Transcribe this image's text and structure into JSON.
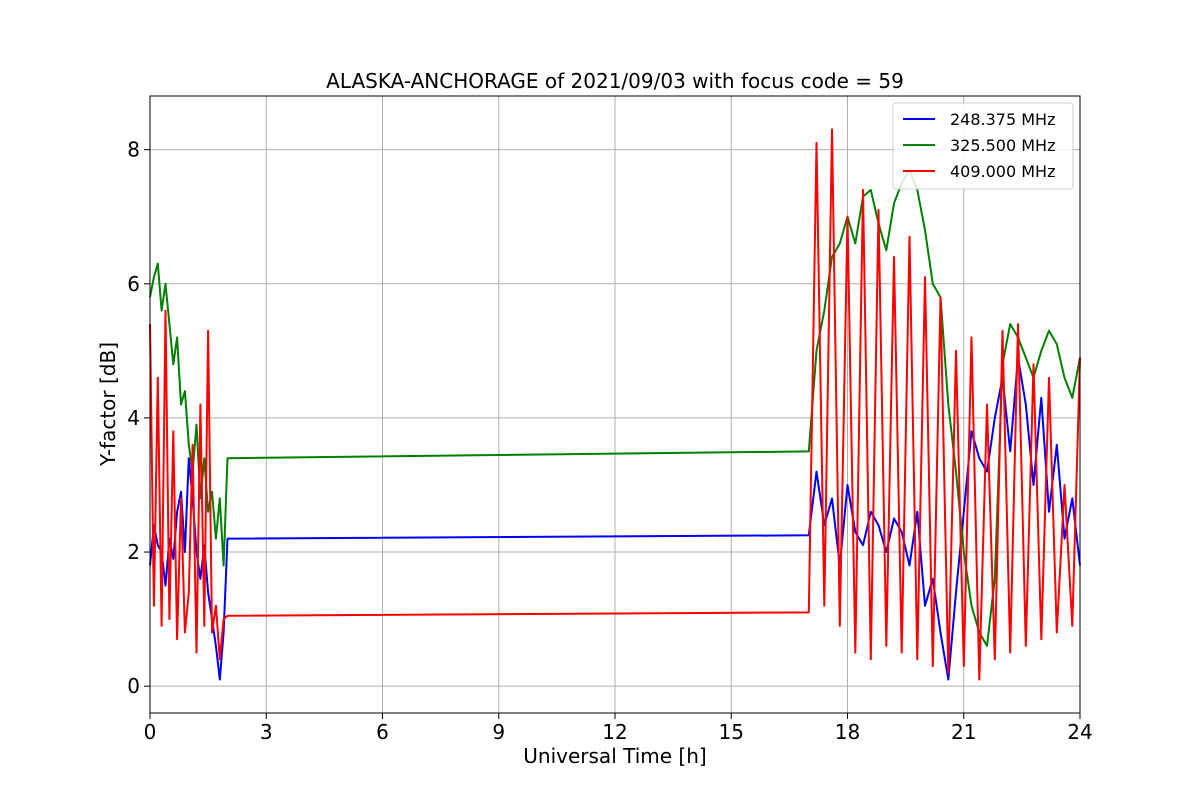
{
  "chart_data": {
    "type": "line",
    "title": "ALASKA-ANCHORAGE of 2021/09/03 with focus code = 59",
    "xlabel": "Universal Time [h]",
    "ylabel": "Y-factor [dB]",
    "xlim": [
      0,
      24
    ],
    "ylim": [
      -0.4,
      8.8
    ],
    "xticks": [
      0,
      3,
      6,
      9,
      12,
      15,
      18,
      21,
      24
    ],
    "yticks": [
      0,
      2,
      4,
      6,
      8
    ],
    "grid": true,
    "legend_position": "top-right",
    "series": [
      {
        "name": "248.375 MHz",
        "color": "#0000ff",
        "x": [
          0,
          0.1,
          0.2,
          0.3,
          0.4,
          0.5,
          0.6,
          0.7,
          0.8,
          0.9,
          1.0,
          1.1,
          1.2,
          1.3,
          1.4,
          1.5,
          1.6,
          1.7,
          1.8,
          1.9,
          2.0,
          17.0,
          17.2,
          17.4,
          17.6,
          17.8,
          18.0,
          18.2,
          18.4,
          18.6,
          18.8,
          19.0,
          19.2,
          19.4,
          19.6,
          19.8,
          20.0,
          20.2,
          20.4,
          20.6,
          20.8,
          21.0,
          21.2,
          21.4,
          21.6,
          21.8,
          22.0,
          22.2,
          22.4,
          22.6,
          22.8,
          23.0,
          23.2,
          23.4,
          23.6,
          23.8,
          24.0
        ],
        "y": [
          1.8,
          2.4,
          2.1,
          2.0,
          1.5,
          2.2,
          1.9,
          2.6,
          2.9,
          2.0,
          3.4,
          2.8,
          2.0,
          1.6,
          2.1,
          1.4,
          1.0,
          0.6,
          0.1,
          0.8,
          2.2,
          2.25,
          3.2,
          2.4,
          2.8,
          1.8,
          3.0,
          2.3,
          2.1,
          2.6,
          2.4,
          2.0,
          2.5,
          2.3,
          1.8,
          2.6,
          1.2,
          1.6,
          0.8,
          0.1,
          1.4,
          2.6,
          3.8,
          3.4,
          3.2,
          4.0,
          4.6,
          3.5,
          4.9,
          4.2,
          3.0,
          4.3,
          2.6,
          3.6,
          2.2,
          2.8,
          1.8
        ]
      },
      {
        "name": "325.500 MHz",
        "color": "#008000",
        "x": [
          0,
          0.1,
          0.2,
          0.3,
          0.4,
          0.5,
          0.6,
          0.7,
          0.8,
          0.9,
          1.0,
          1.1,
          1.2,
          1.3,
          1.4,
          1.5,
          1.6,
          1.7,
          1.8,
          1.9,
          2.0,
          17.0,
          17.2,
          17.4,
          17.6,
          17.8,
          18.0,
          18.2,
          18.4,
          18.6,
          18.8,
          19.0,
          19.2,
          19.4,
          19.6,
          19.8,
          20.0,
          20.2,
          20.4,
          20.6,
          20.8,
          21.0,
          21.2,
          21.4,
          21.6,
          21.8,
          22.0,
          22.2,
          22.4,
          22.6,
          22.8,
          23.0,
          23.2,
          23.4,
          23.6,
          23.8,
          24.0
        ],
        "y": [
          5.8,
          6.1,
          6.3,
          5.6,
          6.0,
          5.4,
          4.8,
          5.2,
          4.2,
          4.4,
          3.6,
          3.2,
          3.9,
          2.8,
          3.4,
          2.6,
          2.9,
          2.2,
          2.8,
          1.8,
          3.4,
          3.5,
          5.0,
          5.6,
          6.4,
          6.6,
          7.0,
          6.6,
          7.3,
          7.4,
          6.9,
          6.5,
          7.2,
          7.5,
          7.7,
          7.4,
          6.8,
          6.0,
          5.8,
          4.2,
          3.2,
          2.0,
          1.2,
          0.8,
          0.6,
          1.6,
          4.8,
          5.4,
          5.2,
          4.9,
          4.6,
          5.0,
          5.3,
          5.1,
          4.6,
          4.3,
          4.9
        ]
      },
      {
        "name": "409.000 MHz",
        "color": "#ff0000",
        "x": [
          0,
          0.1,
          0.2,
          0.3,
          0.4,
          0.5,
          0.6,
          0.7,
          0.8,
          0.9,
          1.0,
          1.1,
          1.2,
          1.3,
          1.4,
          1.5,
          1.6,
          1.7,
          1.8,
          1.9,
          2.0,
          17.0,
          17.2,
          17.4,
          17.6,
          17.8,
          18.0,
          18.2,
          18.4,
          18.6,
          18.8,
          19.0,
          19.2,
          19.4,
          19.6,
          19.8,
          20.0,
          20.2,
          20.4,
          20.6,
          20.8,
          21.0,
          21.2,
          21.4,
          21.6,
          21.8,
          22.0,
          22.2,
          22.4,
          22.6,
          22.8,
          23.0,
          23.2,
          23.4,
          23.6,
          23.8,
          24.0
        ],
        "y": [
          5.4,
          1.2,
          4.6,
          0.9,
          5.6,
          1.0,
          3.8,
          0.7,
          2.8,
          0.8,
          1.4,
          3.6,
          0.5,
          4.2,
          0.9,
          5.3,
          0.8,
          1.2,
          0.4,
          1.0,
          1.05,
          1.1,
          8.1,
          1.2,
          8.3,
          0.9,
          7.0,
          0.5,
          7.4,
          0.4,
          7.1,
          0.6,
          6.4,
          0.5,
          6.7,
          0.4,
          6.1,
          0.3,
          5.8,
          0.2,
          5.0,
          0.3,
          5.2,
          0.1,
          4.2,
          0.4,
          5.3,
          0.5,
          5.4,
          0.6,
          4.8,
          0.7,
          4.6,
          0.8,
          3.0,
          0.9,
          4.9
        ]
      }
    ]
  }
}
